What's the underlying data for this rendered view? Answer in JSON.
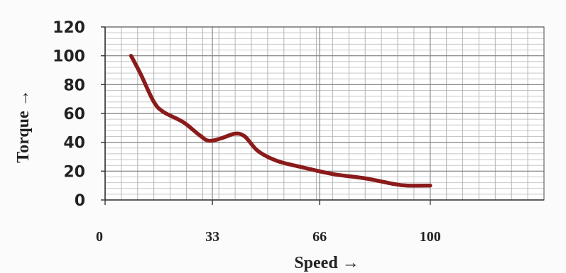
{
  "chart_data": {
    "type": "line",
    "xlabel": "Speed →",
    "ylabel": "Torque →",
    "xlim": [
      0,
      135
    ],
    "ylim": [
      0,
      120
    ],
    "x_ticks": [
      {
        "value": 0,
        "label": "0"
      },
      {
        "value": 33,
        "label": "33"
      },
      {
        "value": 66,
        "label": "66"
      },
      {
        "value": 100,
        "label": "100"
      }
    ],
    "y_ticks": [
      {
        "value": 0,
        "label": "0"
      },
      {
        "value": 20,
        "label": "20"
      },
      {
        "value": 40,
        "label": "40"
      },
      {
        "value": 60,
        "label": "60"
      },
      {
        "value": 80,
        "label": "80"
      },
      {
        "value": 100,
        "label": "100"
      },
      {
        "value": 120,
        "label": "120"
      }
    ],
    "grid": true,
    "series": [
      {
        "color": "#8b1a1a",
        "points": [
          {
            "x": 8,
            "y": 100
          },
          {
            "x": 11,
            "y": 87
          },
          {
            "x": 15,
            "y": 68
          },
          {
            "x": 18,
            "y": 61
          },
          {
            "x": 24,
            "y": 54
          },
          {
            "x": 29,
            "y": 45
          },
          {
            "x": 32,
            "y": 41
          },
          {
            "x": 36,
            "y": 43
          },
          {
            "x": 40,
            "y": 46
          },
          {
            "x": 43,
            "y": 44
          },
          {
            "x": 47,
            "y": 34
          },
          {
            "x": 53,
            "y": 27
          },
          {
            "x": 60,
            "y": 23
          },
          {
            "x": 70,
            "y": 18
          },
          {
            "x": 80,
            "y": 15
          },
          {
            "x": 89,
            "y": 11
          },
          {
            "x": 93,
            "y": 10
          },
          {
            "x": 100,
            "y": 10
          }
        ]
      }
    ]
  }
}
